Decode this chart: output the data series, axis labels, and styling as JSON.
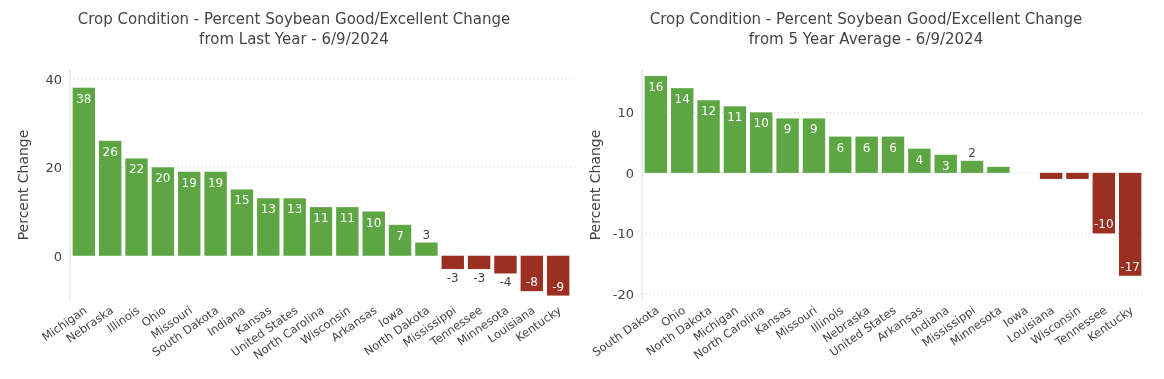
{
  "chart_data": [
    {
      "type": "bar",
      "title": "Crop Condition - Percent Soybean Good/Excellent Change\nfrom Last Year - 6/9/2024",
      "ylabel": "Percent Change",
      "categories": [
        "Michigan",
        "Nebraska",
        "Illinois",
        "Ohio",
        "Missouri",
        "South Dakota",
        "Indiana",
        "Kansas",
        "United States",
        "North Carolina",
        "Wisconsin",
        "Arkansas",
        "Iowa",
        "North Dakota",
        "Mississippi",
        "Tennessee",
        "Minnesota",
        "Louisiana",
        "Kentucky"
      ],
      "values": [
        38,
        26,
        22,
        20,
        19,
        19,
        15,
        13,
        13,
        11,
        11,
        10,
        7,
        3,
        -3,
        -3,
        -4,
        -8,
        -9
      ],
      "colors": [
        "#5ea644",
        "#5ea644",
        "#5ea644",
        "#5ea644",
        "#5ea644",
        "#5ea644",
        "#5ea644",
        "#5ea644",
        "#5ea644",
        "#5ea644",
        "#5ea644",
        "#5ea644",
        "#5ea644",
        "#5ea644",
        "#9b3022",
        "#9b3022",
        "#9b3022",
        "#9b3022",
        "#9b3022"
      ],
      "ylim": [
        -10,
        42
      ],
      "yticks": [
        0,
        20,
        40
      ],
      "grid": "y",
      "data_labels": true
    },
    {
      "type": "bar",
      "title": "Crop Condition - Percent Soybean Good/Excellent Change\nfrom 5 Year Average - 6/9/2024",
      "ylabel": "Percent Change",
      "categories": [
        "South Dakota",
        "Ohio",
        "North Dakota",
        "Michigan",
        "North Carolina",
        "Kansas",
        "Missouri",
        "Illinois",
        "Nebraska",
        "United States",
        "Arkansas",
        "Indiana",
        "Mississippi",
        "Minnesota",
        "Iowa",
        "Louisiana",
        "Wisconsin",
        "Tennessee",
        "Kentucky"
      ],
      "values": [
        16,
        14,
        12,
        11,
        10,
        9,
        9,
        6,
        6,
        6,
        4,
        3,
        2,
        1,
        0,
        -1,
        -1,
        -10,
        -17
      ],
      "value_labels": [
        "16",
        "14",
        "12",
        "11",
        "10",
        "9",
        "9",
        "6",
        "6",
        "6",
        "4",
        "3",
        "2",
        null,
        null,
        null,
        null,
        "-10",
        "-17"
      ],
      "colors": [
        "#5ea644",
        "#5ea644",
        "#5ea644",
        "#5ea644",
        "#5ea644",
        "#5ea644",
        "#5ea644",
        "#5ea644",
        "#5ea644",
        "#5ea644",
        "#5ea644",
        "#5ea644",
        "#5ea644",
        "#5ea644",
        "#5ea644",
        "#9b3022",
        "#9b3022",
        "#9b3022",
        "#9b3022"
      ],
      "ylim": [
        -21,
        17
      ],
      "yticks": [
        -20,
        -10,
        0,
        10
      ],
      "grid": "y"
    }
  ]
}
